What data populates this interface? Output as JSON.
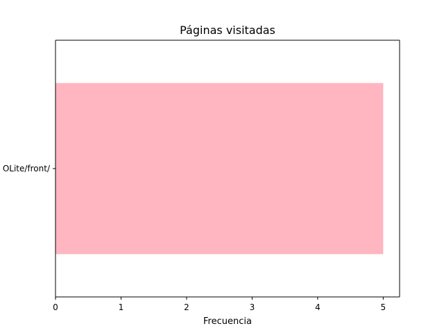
{
  "chart_data": {
    "type": "bar",
    "orientation": "horizontal",
    "title": "Páginas visitadas",
    "xlabel": "Frecuencia",
    "ylabel": "",
    "categories": [
      "OLite/front/"
    ],
    "values": [
      5
    ],
    "xlim": [
      0,
      5.25
    ],
    "xticks": [
      0,
      1,
      2,
      3,
      4,
      5
    ],
    "xtick_labels": [
      "0",
      "1",
      "2",
      "3",
      "4",
      "5"
    ],
    "grid": false,
    "bar_color": "#ffb6c1"
  }
}
